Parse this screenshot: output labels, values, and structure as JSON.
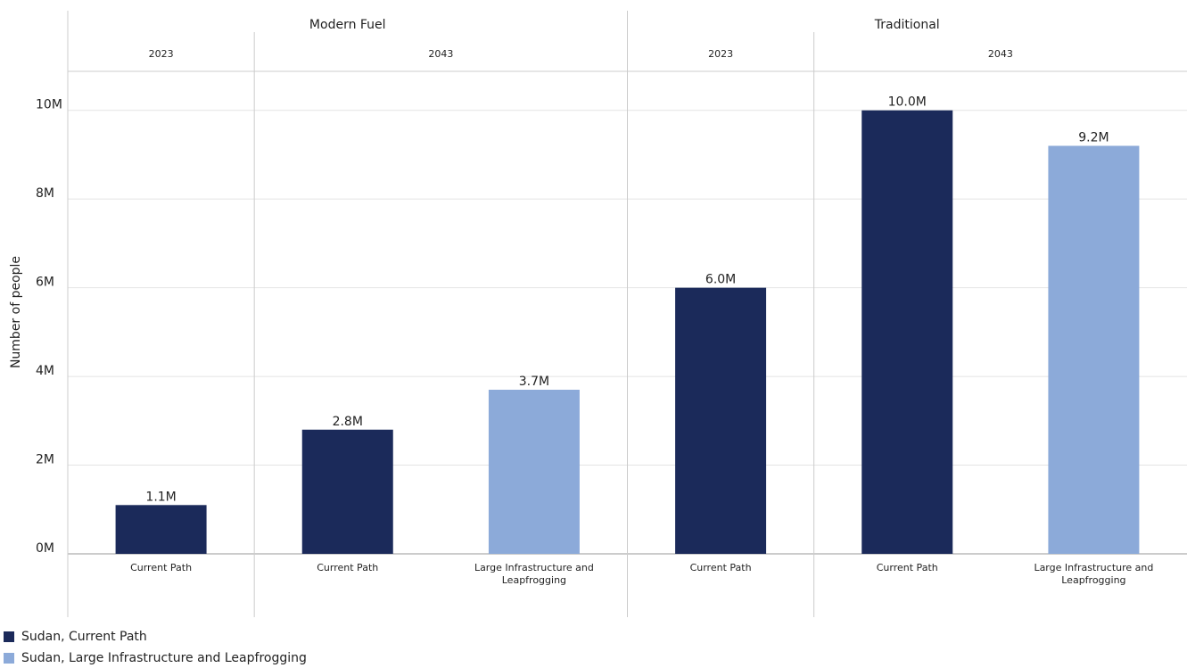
{
  "chart_data": {
    "type": "bar",
    "y_label": "Number of people",
    "groups": [
      {
        "name": "Modern Fuel",
        "subgroups": [
          {
            "name": "2023",
            "categories": [
              "Current Path"
            ]
          },
          {
            "name": "2043",
            "categories": [
              "Current Path",
              "Large Infrastructure and Leapfrogging"
            ]
          }
        ]
      },
      {
        "name": "Traditional",
        "subgroups": [
          {
            "name": "2023",
            "categories": [
              "Current Path"
            ]
          },
          {
            "name": "2043",
            "categories": [
              "Current Path",
              "Large Infrastructure and Leapfrogging"
            ]
          }
        ]
      }
    ],
    "series": [
      {
        "name": "Sudan, Current Path",
        "color": "#1b2a5a",
        "values": [
          1100000,
          2800000,
          null,
          6000000,
          10000000,
          null
        ],
        "value_labels": [
          "1.1M",
          "2.8M",
          null,
          "6.0M",
          "10.0M",
          null
        ]
      },
      {
        "name": "Sudan, Large Infrastructure and Leapfrogging",
        "color": "#8caad9",
        "values": [
          null,
          null,
          3700000,
          null,
          null,
          9200000
        ],
        "value_labels": [
          null,
          null,
          "3.7M",
          null,
          null,
          "9.2M"
        ]
      }
    ],
    "ylim": [
      0,
      11000000
    ],
    "yticks": [
      {
        "value": 0,
        "label": "0M"
      },
      {
        "value": 2000000,
        "label": "2M"
      },
      {
        "value": 4000000,
        "label": "4M"
      },
      {
        "value": 6000000,
        "label": "6M"
      },
      {
        "value": 8000000,
        "label": "8M"
      },
      {
        "value": 10000000,
        "label": "10M"
      }
    ],
    "grid": true
  }
}
